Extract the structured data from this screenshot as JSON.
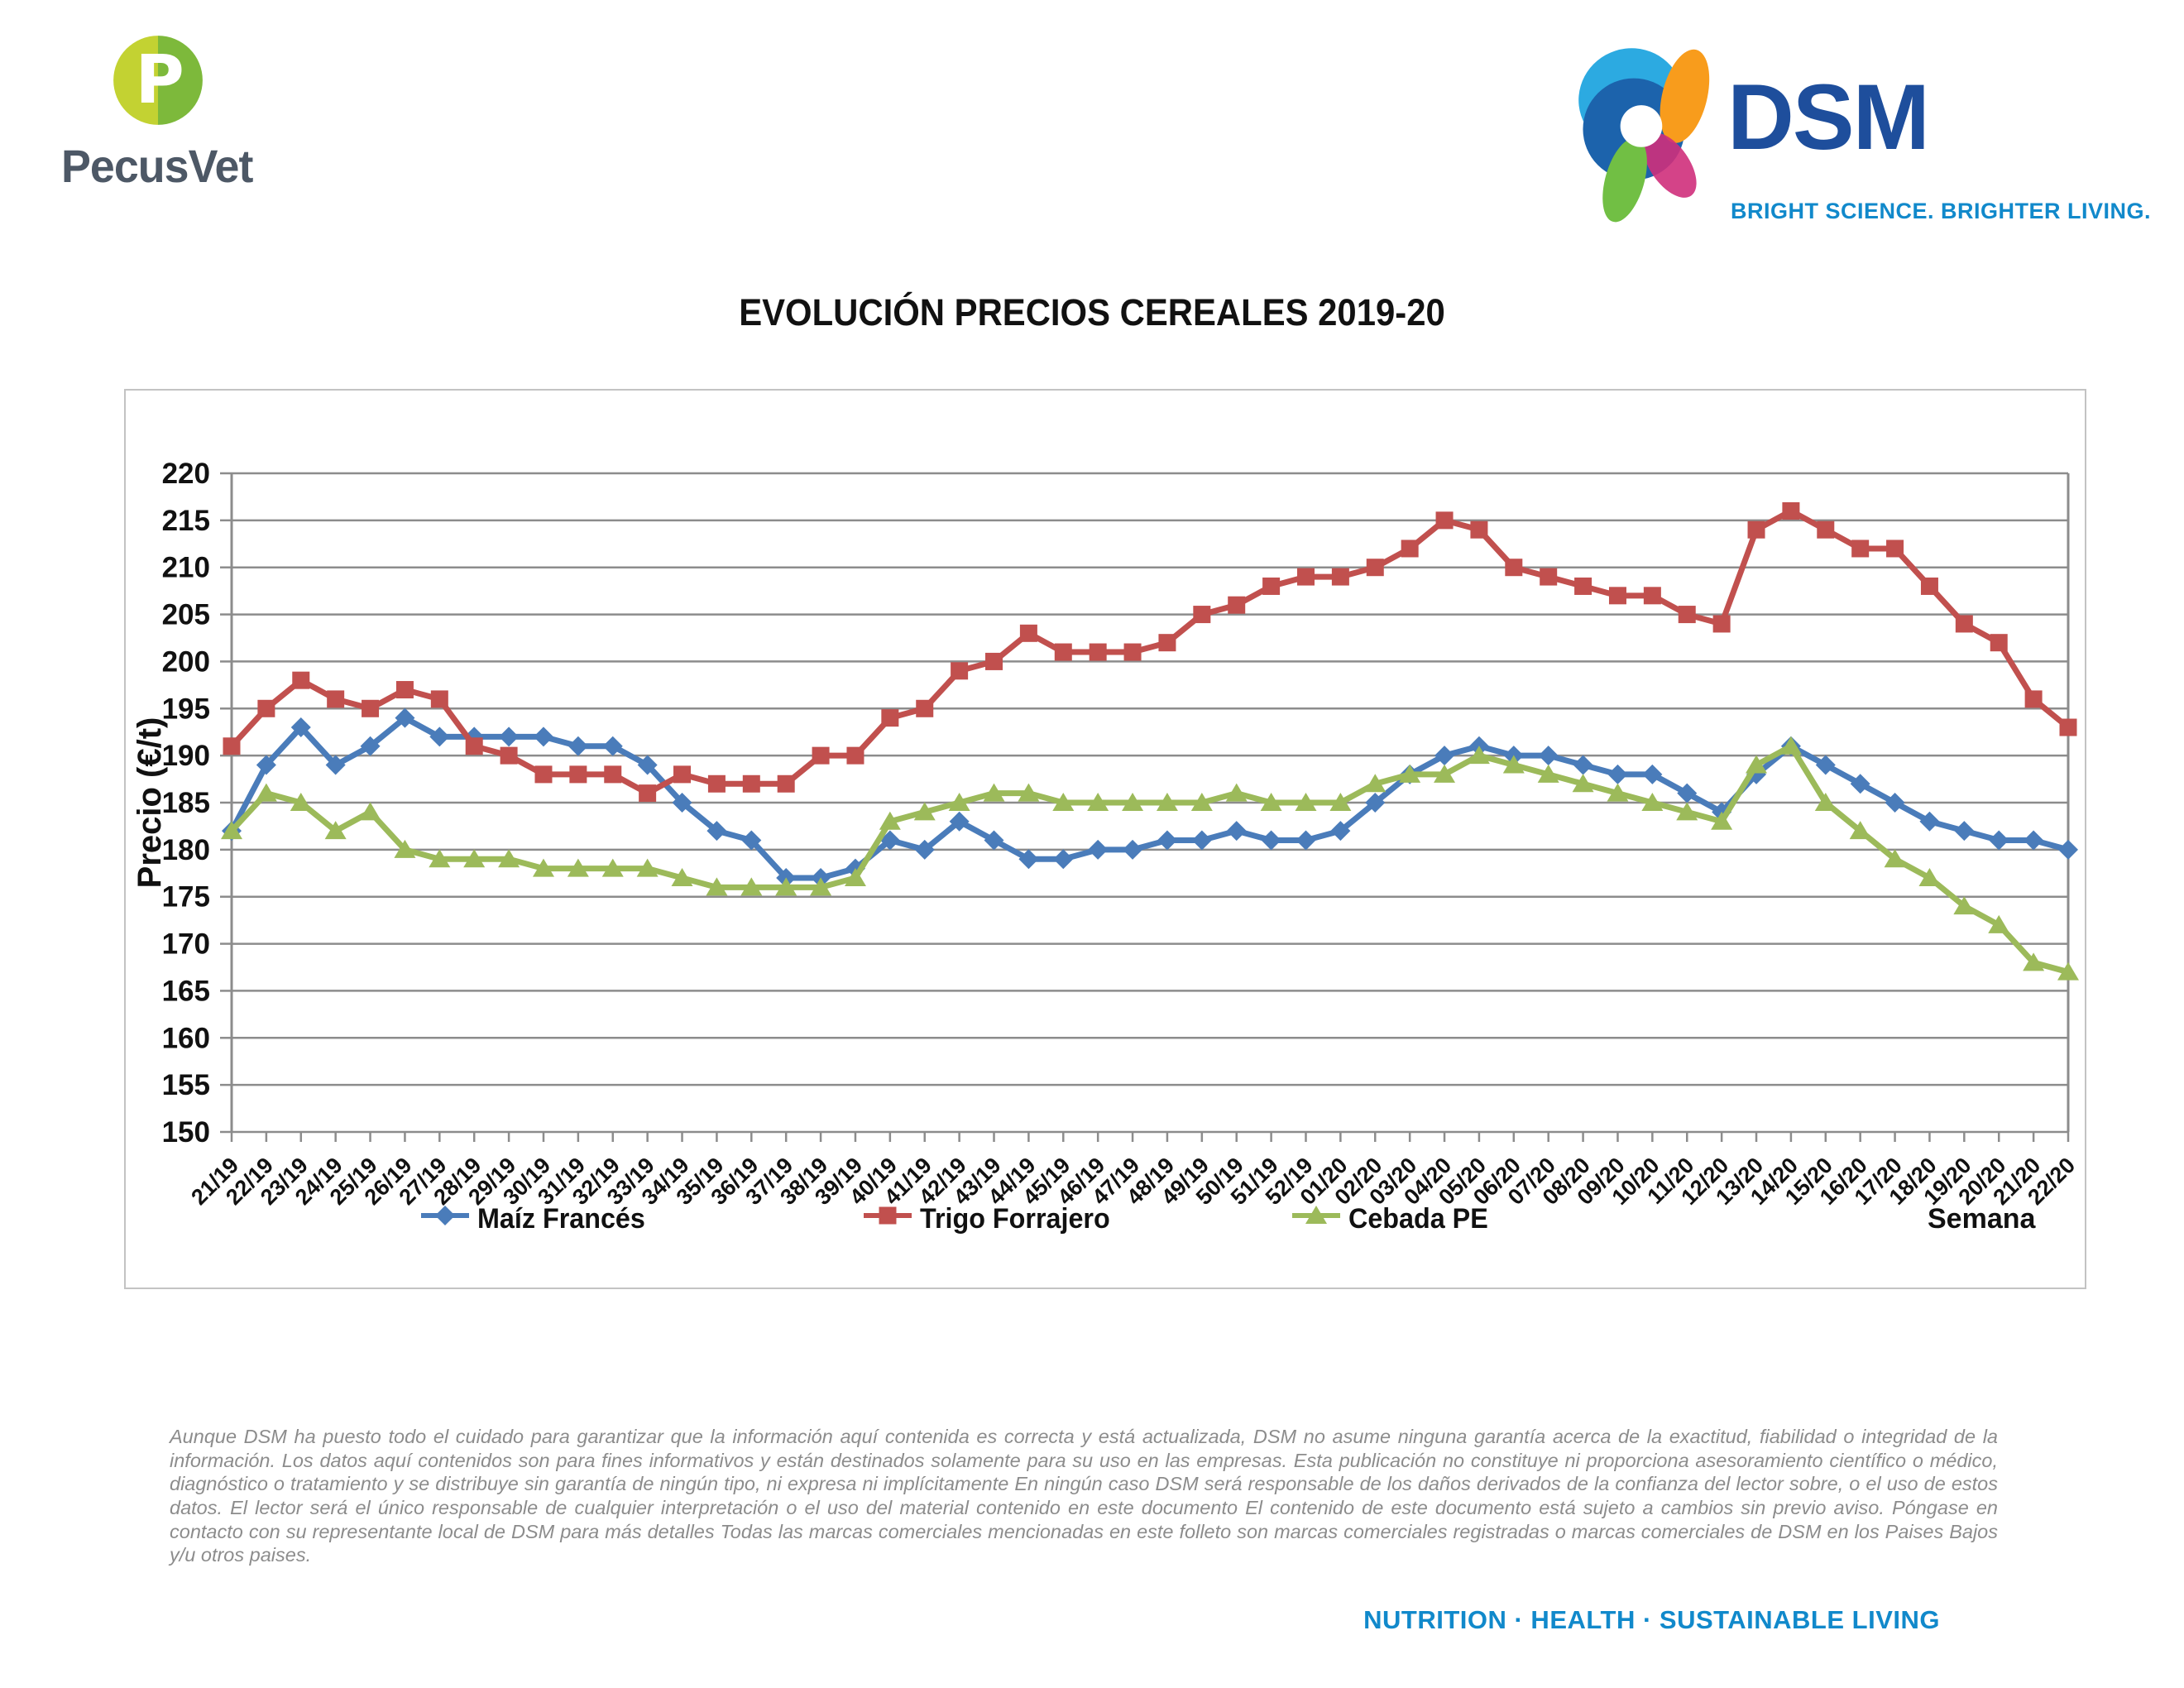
{
  "header": {
    "pecusvet": {
      "label": "PecusVet",
      "monogram": "P",
      "circle_left_color": "#c3d232",
      "circle_right_color": "#7db93b",
      "text_color": "#4d5866"
    },
    "dsm": {
      "name": "DSM",
      "name_color": "#1e4e9c",
      "tagline": "BRIGHT SCIENCE. BRIGHTER LIVING.",
      "tagline_color": "#1189cb"
    }
  },
  "chart_data": {
    "type": "line",
    "title": "EVOLUCIÓN PRECIOS CEREALES 2019-20",
    "ylabel": "Precio (€/t)",
    "xlabel": "Semana",
    "ylim": [
      150,
      220
    ],
    "ytick_step": 5,
    "grid": true,
    "grid_color": "#8c8c8c",
    "legend_position": "bottom",
    "categories": [
      "21/19",
      "22/19",
      "23/19",
      "24/19",
      "25/19",
      "26/19",
      "27/19",
      "28/19",
      "29/19",
      "30/19",
      "31/19",
      "32/19",
      "33/19",
      "34/19",
      "35/19",
      "36/19",
      "37/19",
      "38/19",
      "39/19",
      "40/19",
      "41/19",
      "42/19",
      "43/19",
      "44/19",
      "45/19",
      "46/19",
      "47/19",
      "48/19",
      "49/19",
      "50/19",
      "51/19",
      "52/19",
      "01/20",
      "02/20",
      "03/20",
      "04/20",
      "05/20",
      "06/20",
      "07/20",
      "08/20",
      "09/20",
      "10/20",
      "11/20",
      "12/20",
      "13/20",
      "14/20",
      "15/20",
      "16/20",
      "17/20",
      "18/20",
      "19/20",
      "20/20",
      "21/20",
      "22/20"
    ],
    "series": [
      {
        "name": "Maíz Francés",
        "color": "#4a7cba",
        "marker": "diamond",
        "values": [
          182,
          189,
          193,
          189,
          191,
          194,
          192,
          192,
          192,
          192,
          191,
          191,
          189,
          185,
          182,
          181,
          177,
          177,
          178,
          181,
          180,
          183,
          181,
          179,
          179,
          180,
          180,
          181,
          181,
          182,
          181,
          181,
          182,
          185,
          188,
          190,
          191,
          190,
          190,
          189,
          188,
          188,
          186,
          184,
          188,
          191,
          189,
          187,
          185,
          183,
          182,
          181,
          181,
          180
        ]
      },
      {
        "name": "Trigo Forrajero",
        "color": "#c1504e",
        "marker": "square",
        "values": [
          191,
          195,
          198,
          196,
          195,
          197,
          196,
          191,
          190,
          188,
          188,
          188,
          186,
          188,
          187,
          187,
          187,
          190,
          190,
          194,
          195,
          199,
          200,
          203,
          201,
          201,
          201,
          202,
          205,
          206,
          208,
          209,
          209,
          210,
          212,
          215,
          214,
          210,
          209,
          208,
          207,
          207,
          205,
          204,
          214,
          216,
          214,
          212,
          212,
          208,
          204,
          202,
          196,
          193
        ]
      },
      {
        "name": "Cebada PE",
        "color": "#9cba5a",
        "marker": "triangle",
        "values": [
          182,
          186,
          185,
          182,
          184,
          180,
          179,
          179,
          179,
          178,
          178,
          178,
          178,
          177,
          176,
          176,
          176,
          176,
          177,
          183,
          184,
          185,
          186,
          186,
          185,
          185,
          185,
          185,
          185,
          186,
          185,
          185,
          185,
          187,
          188,
          188,
          190,
          189,
          188,
          187,
          186,
          185,
          184,
          183,
          189,
          191,
          185,
          182,
          179,
          177,
          174,
          172,
          168,
          167
        ]
      }
    ]
  },
  "disclaimer": {
    "text": "Aunque DSM ha puesto todo el cuidado para garantizar que la información aquí contenida es correcta y está actualizada, DSM no asume ninguna garantía acerca de la exactitud, fiabilidad o integridad de la información. Los datos aquí contenidos son para fines informativos y están destinados solamente para su uso en las empresas. Esta publicación no constituye ni proporciona asesoramiento científico o médico, diagnóstico o tratamiento y se distribuye sin garantía de ningún tipo, ni expresa ni implícitamente En ningún caso DSM será responsable de los daños derivados de la confianza del lector sobre, o el uso de estos datos. El lector será el único responsable de cualquier interpretación o el uso del material contenido en este documento El contenido de este documento está sujeto a cambios sin previo aviso. Póngase en contacto con su representante local de DSM para más detalles Todas las marcas comerciales mencionadas en este folleto son marcas comerciales registradas o marcas comerciales de DSM en los Paises Bajos y/u otros paises."
  },
  "footer": {
    "text": "NUTRITION  ·  HEALTH  ·  SUSTAINABLE LIVING",
    "color": "#1189cb"
  }
}
